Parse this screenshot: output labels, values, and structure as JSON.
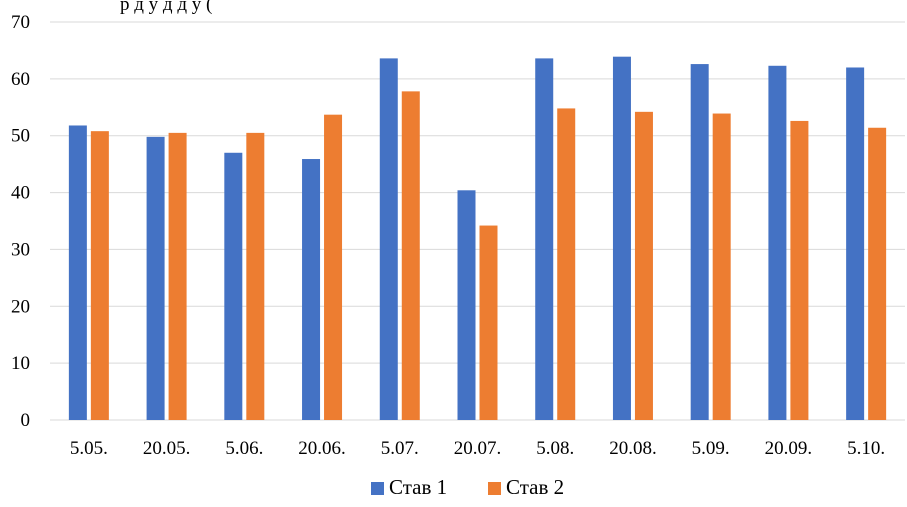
{
  "chart_data": {
    "type": "bar",
    "title": "р                                                   д  у  д      д  у                (",
    "categories": [
      "5.05.",
      "20.05.",
      "5.06.",
      "20.06.",
      "5.07.",
      "20.07.",
      "5.08.",
      "20.08.",
      "5.09.",
      "20.09.",
      "5.10."
    ],
    "series": [
      {
        "name": "Став 1",
        "color": "#4472C4",
        "values": [
          51.8,
          49.8,
          47.0,
          45.9,
          63.6,
          40.4,
          63.6,
          63.9,
          62.6,
          62.3,
          62.0
        ]
      },
      {
        "name": "Став 2",
        "color": "#ED7D31",
        "values": [
          50.8,
          50.5,
          50.5,
          53.7,
          57.8,
          34.2,
          54.8,
          54.2,
          53.9,
          52.6,
          51.4
        ]
      }
    ],
    "ylim": [
      0,
      70
    ],
    "yticks": [
      0,
      10,
      20,
      30,
      40,
      50,
      60,
      70
    ],
    "grid": true,
    "legend": "bottom",
    "gridline_color": "#D9D9D9"
  }
}
